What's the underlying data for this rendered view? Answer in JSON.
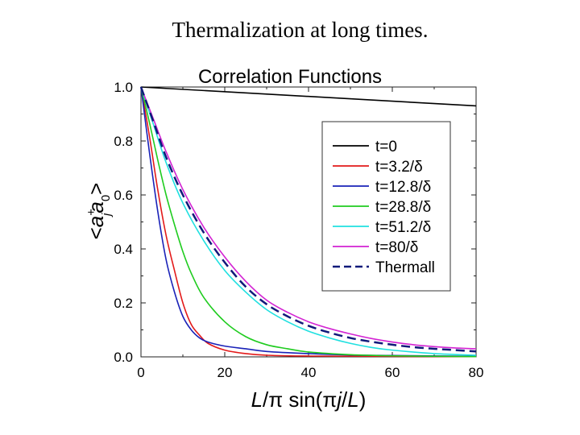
{
  "slide": {
    "title": "Thermalization at long times."
  },
  "chart_data": {
    "type": "line",
    "title": "Correlation Functions",
    "xlabel": "L/π sin(πj/L)",
    "ylabel": "<a_j^+ a_0>",
    "xlim": [
      0,
      80
    ],
    "ylim": [
      0,
      1.0
    ],
    "x_ticks": [
      "0",
      "20",
      "40",
      "60",
      "80"
    ],
    "y_ticks": [
      "0.0",
      "0.2",
      "0.4",
      "0.6",
      "0.8",
      "1.0"
    ],
    "legend_position": "right",
    "series": [
      {
        "name": "t=0",
        "color": "#000000",
        "dash": "solid",
        "points": [
          [
            0,
            1.0
          ],
          [
            80,
            0.93
          ]
        ]
      },
      {
        "name": "t=3.2/δ",
        "color": "#e31a1a",
        "dash": "solid",
        "points": [
          [
            0,
            1.0
          ],
          [
            2,
            0.82
          ],
          [
            4,
            0.62
          ],
          [
            6,
            0.45
          ],
          [
            8,
            0.32
          ],
          [
            10,
            0.2
          ],
          [
            12,
            0.12
          ],
          [
            14,
            0.08
          ],
          [
            16,
            0.05
          ],
          [
            20,
            0.025
          ],
          [
            25,
            0.012
          ],
          [
            30,
            0.006
          ],
          [
            40,
            0.003
          ],
          [
            60,
            0.002
          ],
          [
            80,
            0.001
          ]
        ]
      },
      {
        "name": "t=12.8/δ",
        "color": "#1a22b8",
        "dash": "solid",
        "points": [
          [
            0,
            1.0
          ],
          [
            2,
            0.76
          ],
          [
            4,
            0.54
          ],
          [
            6,
            0.36
          ],
          [
            8,
            0.24
          ],
          [
            10,
            0.15
          ],
          [
            12,
            0.1
          ],
          [
            14,
            0.07
          ],
          [
            16,
            0.055
          ],
          [
            20,
            0.04
          ],
          [
            25,
            0.03
          ],
          [
            30,
            0.02
          ],
          [
            40,
            0.012
          ],
          [
            50,
            0.007
          ],
          [
            60,
            0.005
          ],
          [
            80,
            0.002
          ]
        ]
      },
      {
        "name": "t=28.8/δ",
        "color": "#1fcc1f",
        "dash": "solid",
        "points": [
          [
            0,
            1.0
          ],
          [
            2,
            0.87
          ],
          [
            4,
            0.73
          ],
          [
            6,
            0.6
          ],
          [
            8,
            0.49
          ],
          [
            10,
            0.39
          ],
          [
            12,
            0.31
          ],
          [
            15,
            0.22
          ],
          [
            20,
            0.13
          ],
          [
            25,
            0.075
          ],
          [
            30,
            0.045
          ],
          [
            35,
            0.03
          ],
          [
            40,
            0.018
          ],
          [
            50,
            0.008
          ],
          [
            60,
            0.004
          ],
          [
            80,
            0.001
          ]
        ]
      },
      {
        "name": "t=51.2/δ",
        "color": "#20e0e0",
        "dash": "solid",
        "points": [
          [
            0,
            1.0
          ],
          [
            3,
            0.86
          ],
          [
            6,
            0.72
          ],
          [
            10,
            0.57
          ],
          [
            15,
            0.43
          ],
          [
            20,
            0.32
          ],
          [
            25,
            0.24
          ],
          [
            30,
            0.175
          ],
          [
            35,
            0.13
          ],
          [
            40,
            0.095
          ],
          [
            45,
            0.07
          ],
          [
            50,
            0.05
          ],
          [
            55,
            0.035
          ],
          [
            60,
            0.025
          ],
          [
            70,
            0.012
          ],
          [
            80,
            0.006
          ]
        ]
      },
      {
        "name": "t=80/δ",
        "color": "#d323d3",
        "dash": "solid",
        "points": [
          [
            0,
            1.0
          ],
          [
            3,
            0.88
          ],
          [
            6,
            0.76
          ],
          [
            10,
            0.62
          ],
          [
            15,
            0.48
          ],
          [
            20,
            0.37
          ],
          [
            25,
            0.28
          ],
          [
            30,
            0.21
          ],
          [
            35,
            0.165
          ],
          [
            40,
            0.13
          ],
          [
            45,
            0.105
          ],
          [
            50,
            0.085
          ],
          [
            55,
            0.068
          ],
          [
            60,
            0.055
          ],
          [
            65,
            0.045
          ],
          [
            70,
            0.038
          ],
          [
            75,
            0.033
          ],
          [
            80,
            0.03
          ]
        ]
      },
      {
        "name": "Thermall",
        "color": "#101a7a",
        "dash": "dashed",
        "points": [
          [
            0,
            1.0
          ],
          [
            3,
            0.87
          ],
          [
            6,
            0.74
          ],
          [
            10,
            0.6
          ],
          [
            15,
            0.46
          ],
          [
            20,
            0.35
          ],
          [
            25,
            0.26
          ],
          [
            30,
            0.195
          ],
          [
            35,
            0.15
          ],
          [
            40,
            0.115
          ],
          [
            45,
            0.09
          ],
          [
            50,
            0.07
          ],
          [
            55,
            0.056
          ],
          [
            60,
            0.045
          ],
          [
            65,
            0.036
          ],
          [
            70,
            0.03
          ],
          [
            75,
            0.025
          ],
          [
            80,
            0.02
          ]
        ]
      }
    ]
  }
}
